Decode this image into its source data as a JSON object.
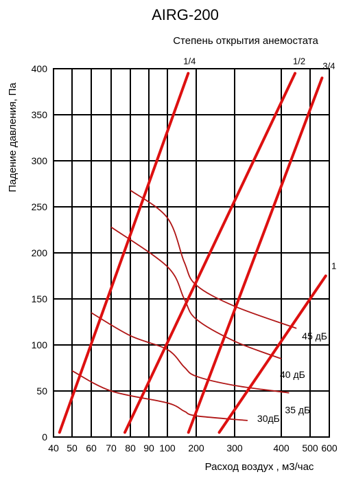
{
  "chart_data": {
    "type": "line",
    "title": "AIRG-200",
    "subtitle": "Степень открытия анемостата",
    "xlabel": "Расход воздух , м3/час",
    "ylabel": "Падение давления, Па",
    "x_scale": "log",
    "xlim": [
      40,
      600
    ],
    "ylim": [
      0,
      400
    ],
    "x_ticks": [
      "40",
      "50",
      "60",
      "70",
      "80",
      "90",
      "100",
      "200",
      "300",
      "400",
      "500",
      "600"
    ],
    "x_tick_values": [
      40,
      50,
      60,
      70,
      80,
      90,
      100,
      200,
      300,
      400,
      500,
      600
    ],
    "y_ticks": [
      "0",
      "50",
      "100",
      "150",
      "200",
      "250",
      "300",
      "350",
      "400"
    ],
    "y_tick_values": [
      0,
      50,
      100,
      150,
      200,
      250,
      300,
      350,
      400
    ],
    "grid": true,
    "series": [
      {
        "name": "1/4",
        "x": [
          43,
          165
        ],
        "y": [
          5,
          395
        ]
      },
      {
        "name": "1/2",
        "x": [
          77,
          445
        ],
        "y": [
          5,
          395
        ]
      },
      {
        "name": "3/4",
        "x": [
          166,
          560
        ],
        "y": [
          5,
          390
        ]
      },
      {
        "name": "1",
        "x": [
          255,
          580
        ],
        "y": [
          5,
          175
        ]
      }
    ],
    "noise_curves": [
      {
        "name": "45 дБ",
        "x": [
          80,
          100,
          150,
          200,
          300,
          450
        ],
        "y": [
          268,
          238,
          190,
          165,
          142,
          118
        ]
      },
      {
        "name": "40 дБ",
        "x": [
          70,
          100,
          150,
          200,
          300,
          400
        ],
        "y": [
          228,
          185,
          150,
          128,
          104,
          85
        ]
      },
      {
        "name": "35 дБ",
        "x": [
          60,
          80,
          100,
          150,
          200,
          300,
          425
        ],
        "y": [
          135,
          110,
          95,
          76,
          66,
          56,
          48
        ]
      },
      {
        "name": "30дБ",
        "x": [
          50,
          70,
          100,
          150,
          200,
          325
        ],
        "y": [
          72,
          50,
          37,
          28,
          23,
          18
        ]
      }
    ]
  }
}
